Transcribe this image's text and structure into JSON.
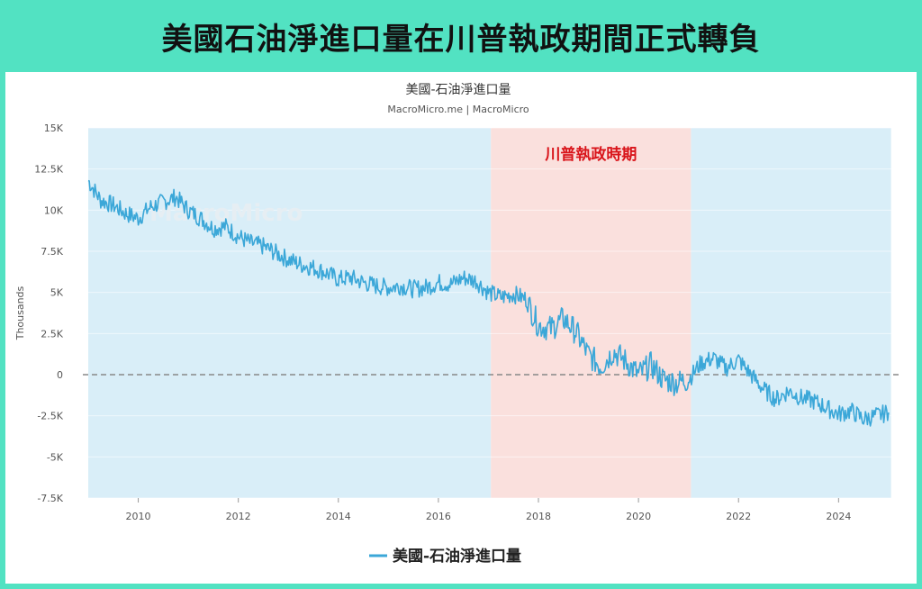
{
  "banner": {
    "title": "美國石油淨進口量在川普執政期間正式轉負"
  },
  "chart_data": {
    "type": "line",
    "title": "美國-石油淨進口量",
    "subtitle": "MacroMicro.me | MacroMicro",
    "watermark": "MacroMicro",
    "ylabel": "Thousands",
    "ylim": [
      -7500,
      15000
    ],
    "xlim": [
      2009.0,
      2025.2
    ],
    "y_ticks": [
      "15K",
      "12.5K",
      "10K",
      "7.5K",
      "5K",
      "2.5K",
      "0",
      "-2.5K",
      "-5K",
      "-7.5K"
    ],
    "y_tick_values": [
      15000,
      12500,
      10000,
      7500,
      5000,
      2500,
      0,
      -2500,
      -5000,
      -7500
    ],
    "x_ticks": [
      "2010",
      "2012",
      "2014",
      "2016",
      "2018",
      "2020",
      "2022",
      "2024"
    ],
    "x_tick_values": [
      2010,
      2012,
      2014,
      2016,
      2018,
      2020,
      2022,
      2024
    ],
    "zero_line": "dashed",
    "bands": [
      {
        "from": 2009.0,
        "to": 2017.05,
        "color": "#d9eef8"
      },
      {
        "from": 2017.05,
        "to": 2021.05,
        "color": "#fae0dd",
        "label": "川普執政時期"
      },
      {
        "from": 2021.05,
        "to": 2025.05,
        "color": "#d9eef8"
      }
    ],
    "series": [
      {
        "name": "美國-石油淨進口量",
        "color": "#3ba7d8",
        "x": [
          2009.0,
          2009.25,
          2009.5,
          2009.75,
          2010.0,
          2010.25,
          2010.5,
          2010.75,
          2011.0,
          2011.25,
          2011.5,
          2011.75,
          2012.0,
          2012.25,
          2012.5,
          2012.75,
          2013.0,
          2013.25,
          2013.5,
          2013.75,
          2014.0,
          2014.25,
          2014.5,
          2014.75,
          2015.0,
          2015.25,
          2015.5,
          2015.75,
          2016.0,
          2016.25,
          2016.5,
          2016.75,
          2017.0,
          2017.25,
          2017.5,
          2017.75,
          2018.0,
          2018.25,
          2018.5,
          2018.75,
          2019.0,
          2019.25,
          2019.5,
          2019.75,
          2020.0,
          2020.25,
          2020.5,
          2020.75,
          2021.0,
          2021.25,
          2021.5,
          2021.75,
          2022.0,
          2022.25,
          2022.5,
          2022.75,
          2023.0,
          2023.25,
          2023.5,
          2023.75,
          2024.0,
          2024.25,
          2024.5,
          2024.75,
          2025.0
        ],
        "values": [
          11800,
          10600,
          10300,
          9800,
          9500,
          10200,
          10500,
          10800,
          10000,
          9500,
          8900,
          9000,
          8400,
          8000,
          7800,
          7400,
          7000,
          6700,
          6500,
          6200,
          5800,
          5900,
          5600,
          5400,
          5300,
          5400,
          5200,
          5300,
          5600,
          5500,
          5900,
          5700,
          5000,
          4700,
          4900,
          4600,
          3000,
          2800,
          3400,
          2600,
          1200,
          500,
          1400,
          800,
          0,
          600,
          -300,
          -500,
          -300,
          700,
          1000,
          400,
          900,
          0,
          -900,
          -1500,
          -1000,
          -1400,
          -1600,
          -2000,
          -2400,
          -2200,
          -2700,
          -2500,
          -2300
        ]
      }
    ],
    "legend_position": "bottom"
  }
}
